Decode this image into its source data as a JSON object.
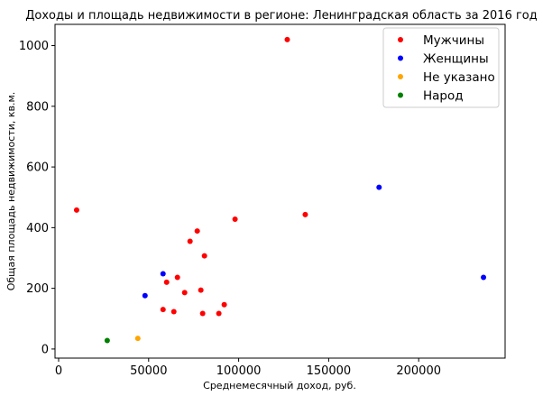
{
  "chart_data": {
    "type": "scatter",
    "title": "Доходы и площадь недвижимости в регионе: Ленинградская область за 2016 год",
    "xlabel": "Среднемесячный доход, руб.",
    "ylabel": "Общая площадь недвижимости, кв.м.",
    "xlim": [
      -2000,
      248000
    ],
    "ylim": [
      -30,
      1070
    ],
    "xticks": [
      0,
      50000,
      100000,
      150000,
      200000
    ],
    "yticks": [
      0,
      200,
      400,
      600,
      800,
      1000
    ],
    "grid": false,
    "legend": "top-right",
    "series": [
      {
        "name": "Мужчины",
        "color": "#ff0000",
        "points": [
          [
            10000,
            458
          ],
          [
            127000,
            1020
          ],
          [
            137000,
            443
          ],
          [
            98000,
            428
          ],
          [
            77000,
            389
          ],
          [
            73000,
            355
          ],
          [
            81000,
            307
          ],
          [
            66000,
            236
          ],
          [
            60000,
            220
          ],
          [
            79000,
            194
          ],
          [
            70000,
            186
          ],
          [
            92000,
            146
          ],
          [
            58000,
            130
          ],
          [
            64000,
            123
          ],
          [
            80000,
            117
          ],
          [
            89000,
            117
          ]
        ]
      },
      {
        "name": "Женщины",
        "color": "#0000ff",
        "points": [
          [
            178000,
            533
          ],
          [
            236000,
            236
          ],
          [
            58000,
            248
          ],
          [
            48000,
            176
          ]
        ]
      },
      {
        "name": "Не указано",
        "color": "#ffa500",
        "points": [
          [
            44000,
            35
          ]
        ]
      },
      {
        "name": "Народ",
        "color": "#008000",
        "points": [
          [
            27000,
            28
          ]
        ]
      }
    ]
  }
}
